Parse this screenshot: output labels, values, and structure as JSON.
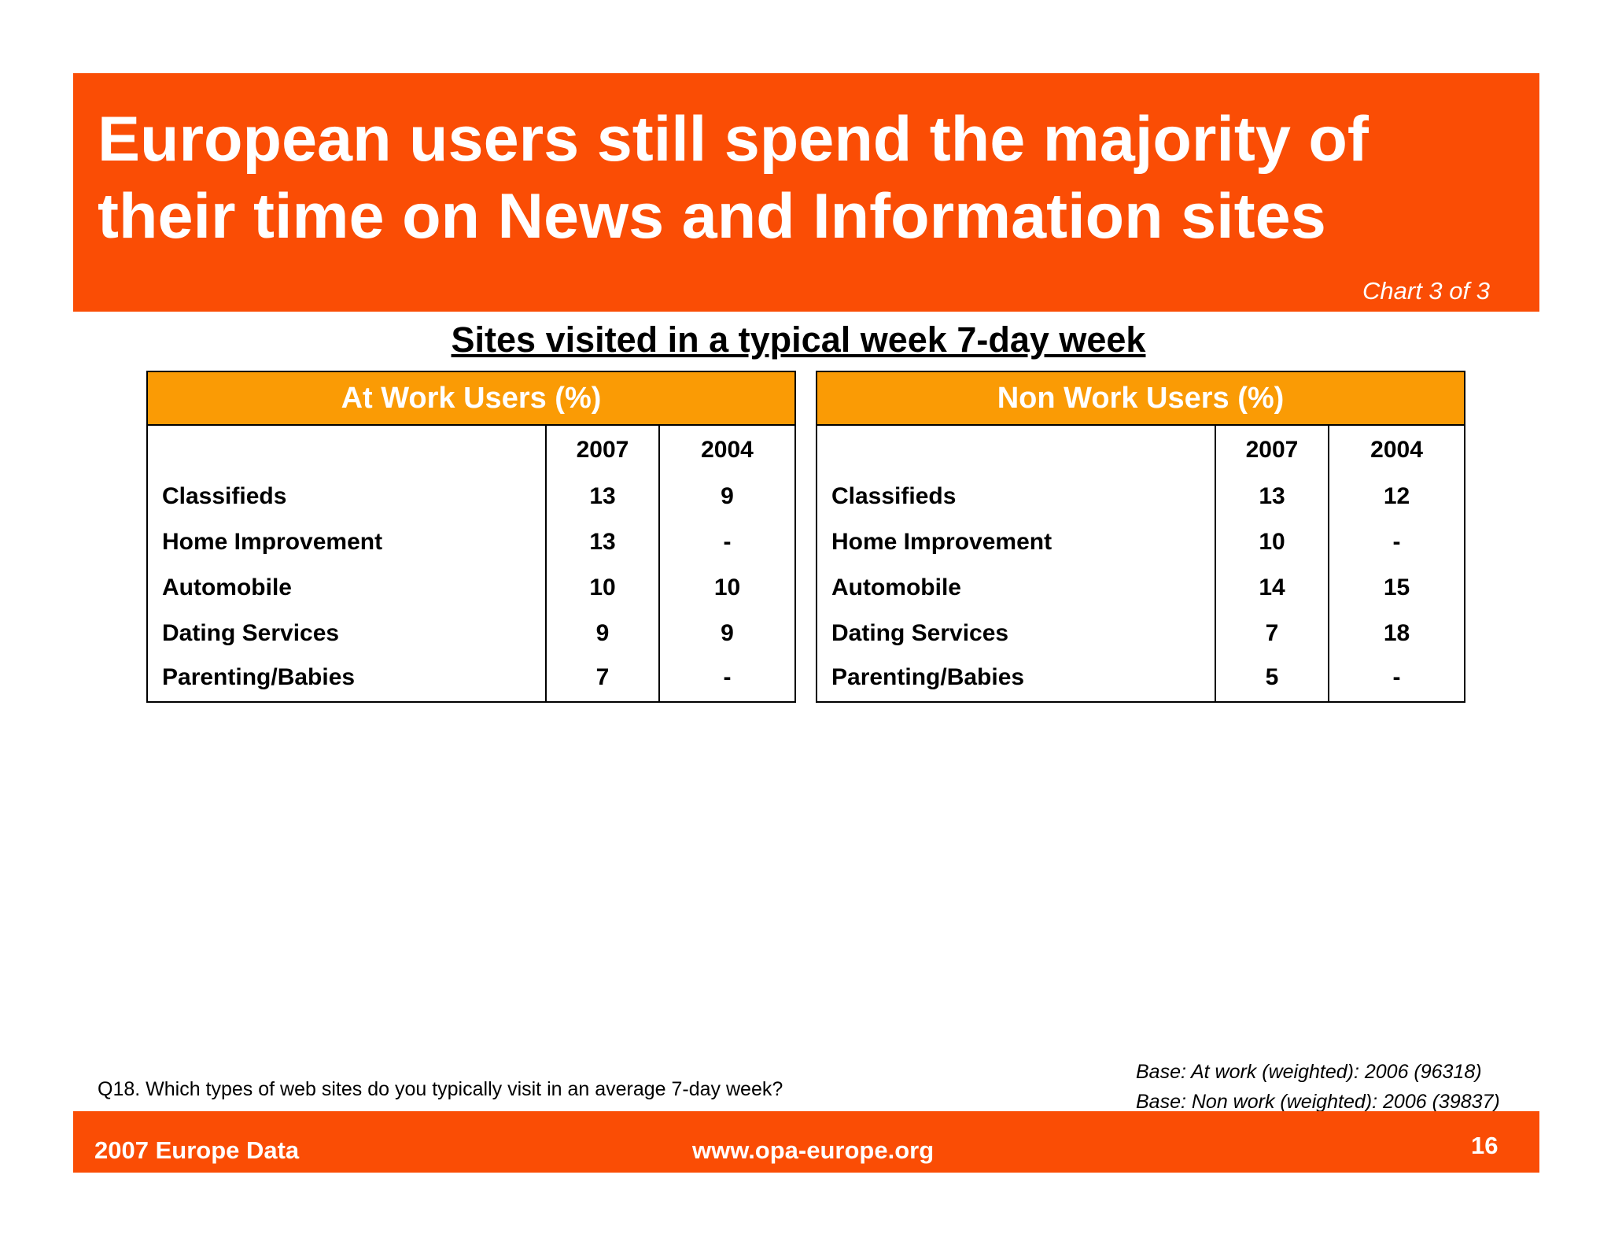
{
  "header": {
    "title": "European users still spend the majority of\ntheir time on News and Information sites",
    "chart_counter": "Chart 3 of 3"
  },
  "section_title": "Sites visited in a typical week 7-day week",
  "tables": {
    "work": {
      "title": "At Work Users (%)",
      "years": [
        "2007",
        "2004"
      ],
      "rows": [
        {
          "label": "Classifieds",
          "v2007": "13",
          "v2004": "9"
        },
        {
          "label": "Home Improvement",
          "v2007": "13",
          "v2004": "-"
        },
        {
          "label": "Automobile",
          "v2007": "10",
          "v2004": "10"
        },
        {
          "label": "Dating Services",
          "v2007": "9",
          "v2004": "9"
        },
        {
          "label": "Parenting/Babies",
          "v2007": "7",
          "v2004": "-"
        }
      ]
    },
    "nonwork": {
      "title": "Non Work Users (%)",
      "years": [
        "2007",
        "2004"
      ],
      "rows": [
        {
          "label": "Classifieds",
          "v2007": "13",
          "v2004": "12"
        },
        {
          "label": "Home Improvement",
          "v2007": "10",
          "v2004": "-"
        },
        {
          "label": "Automobile",
          "v2007": "14",
          "v2004": "15"
        },
        {
          "label": "Dating Services",
          "v2007": "7",
          "v2004": "18"
        },
        {
          "label": "Parenting/Babies",
          "v2007": "5",
          "v2004": "-"
        }
      ]
    }
  },
  "question": "Q18. Which types of web sites do you typically visit in an average 7-day week?",
  "base_notes": [
    "Base: At work (weighted): 2006  (96318)",
    "Base: Non work (weighted): 2006 (39837)"
  ],
  "footer": {
    "left": "2007 Europe Data",
    "center": "www.opa-europe.org",
    "page_number": "16"
  },
  "colors": {
    "brand_orange": "#fa4d05",
    "table_header_orange": "#fa9b05"
  }
}
